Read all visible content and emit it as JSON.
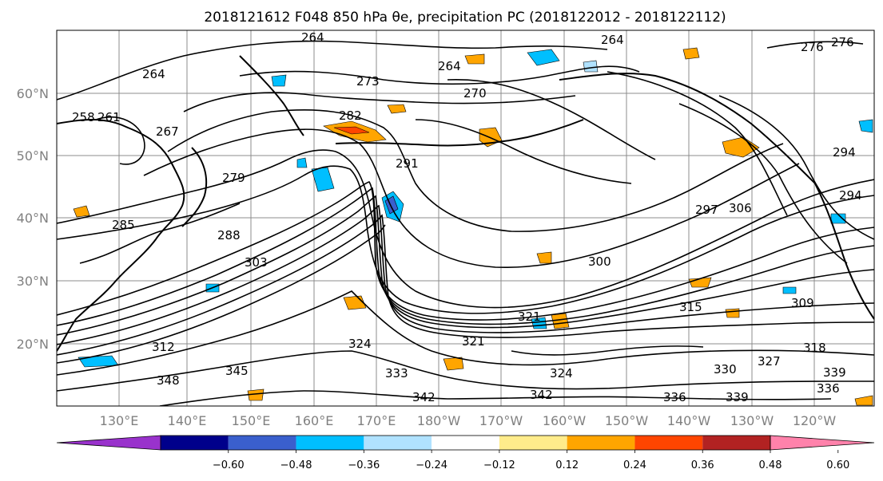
{
  "title": "2018121612 F048 850 hPa θe, precipitation PC (2018122012 - 2018122112)",
  "map": {
    "lat_labels": [
      "60°N",
      "50°N",
      "40°N",
      "30°N",
      "20°N"
    ],
    "lon_labels": [
      "130°E",
      "140°E",
      "150°E",
      "160°E",
      "170°E",
      "180°W",
      "170°W",
      "160°W",
      "150°W",
      "140°W",
      "130°W",
      "120°W"
    ],
    "contour_labels": [
      "264",
      "264",
      "264",
      "264",
      "270",
      "273",
      "276",
      "258",
      "261",
      "267",
      "276",
      "279",
      "282",
      "285",
      "288",
      "291",
      "294",
      "294",
      "297",
      "300",
      "303",
      "306",
      "309",
      "312",
      "315",
      "318",
      "321",
      "321",
      "324",
      "324",
      "327",
      "330",
      "333",
      "336",
      "336",
      "339",
      "339",
      "342",
      "342",
      "345",
      "348"
    ]
  },
  "colorbar": {
    "colors": [
      "#9932cc",
      "#00008b",
      "#3a5fcd",
      "#00bfff",
      "#b0e2ff",
      "#ffffff",
      "#ffec8b",
      "#ffa500",
      "#ff4500",
      "#b22222",
      "#ff82ab"
    ],
    "tick_labels": [
      "−0.60",
      "−0.48",
      "−0.36",
      "−0.24",
      "−0.12",
      "0.12",
      "0.24",
      "0.36",
      "0.48",
      "0.60"
    ]
  }
}
